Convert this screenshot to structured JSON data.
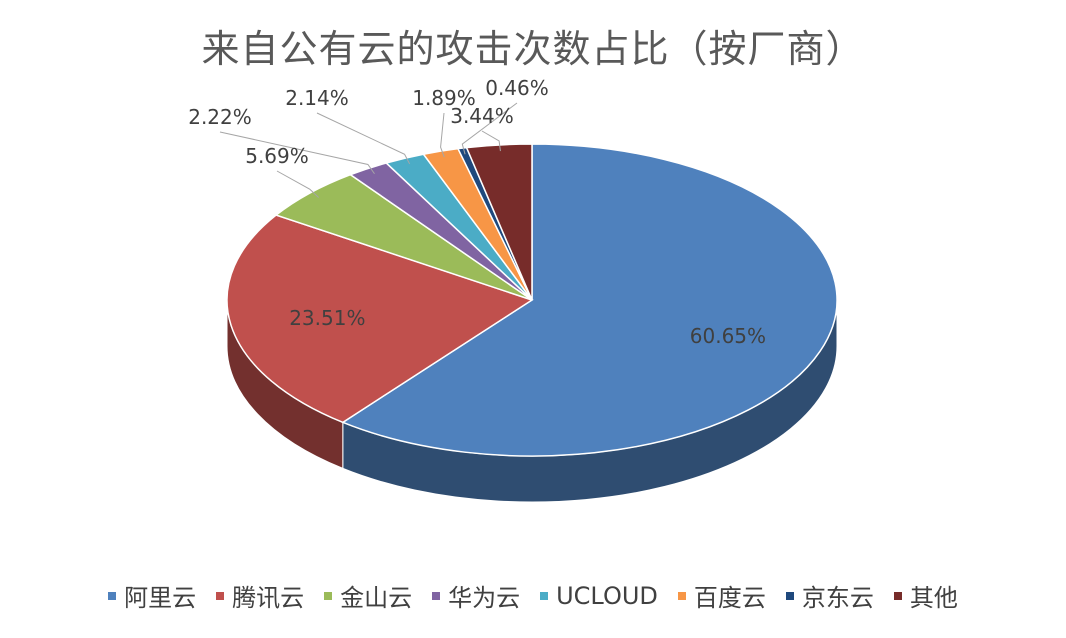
{
  "chart_data": {
    "type": "pie",
    "title": "来自公有云的攻击次数占比（按厂商）",
    "slices": [
      {
        "label": "阿里云",
        "value": 60.65,
        "display": "60.65%",
        "color": "#4F81BD"
      },
      {
        "label": "腾讯云",
        "value": 23.51,
        "display": "23.51%",
        "color": "#C0504D"
      },
      {
        "label": "金山云",
        "value": 5.69,
        "display": "5.69%",
        "color": "#9BBB59"
      },
      {
        "label": "华为云",
        "value": 2.22,
        "display": "2.22%",
        "color": "#8064A2"
      },
      {
        "label": "UCLOUD",
        "value": 2.14,
        "display": "2.14%",
        "color": "#4BACC6"
      },
      {
        "label": "百度云",
        "value": 1.89,
        "display": "1.89%",
        "color": "#F79646"
      },
      {
        "label": "京东云",
        "value": 0.46,
        "display": "0.46%",
        "color": "#1F497D"
      },
      {
        "label": "其他",
        "value": 3.44,
        "display": "3.44%",
        "color": "#772C2A"
      }
    ],
    "legend_position": "bottom",
    "style": "3d"
  }
}
